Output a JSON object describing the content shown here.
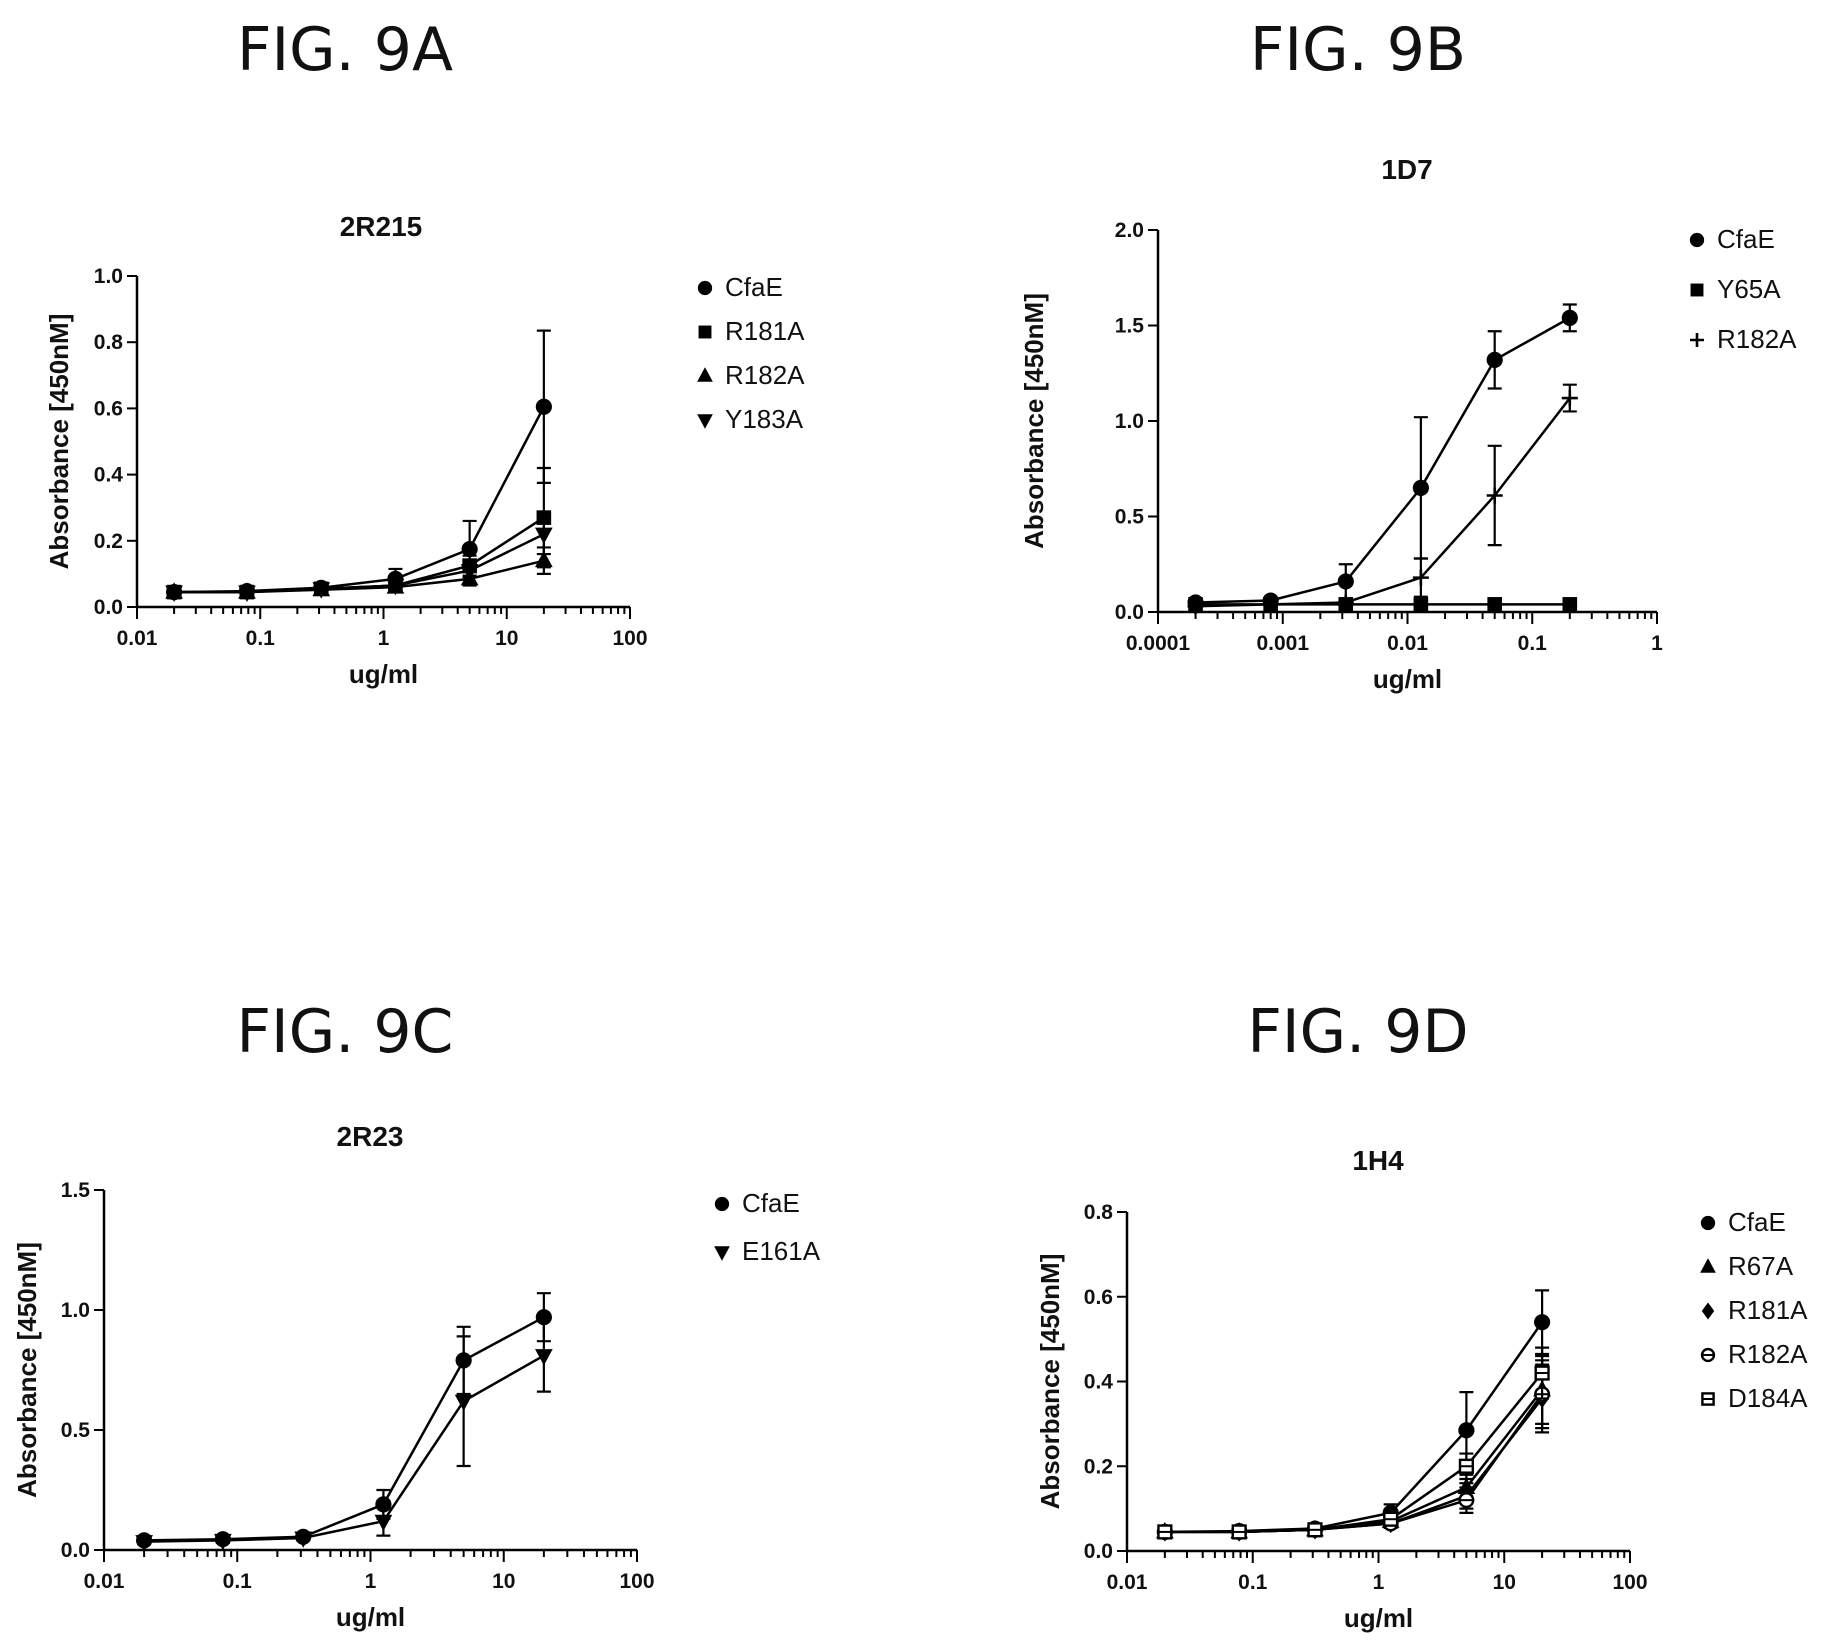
{
  "figures": [
    {
      "fig_label": "FIG. 9A"
    },
    {
      "fig_label": "FIG. 9B"
    },
    {
      "fig_label": "FIG. 9C"
    },
    {
      "fig_label": "FIG. 9D"
    }
  ],
  "chart_data": [
    {
      "type": "line",
      "title": "2R215",
      "xlabel": "ug/ml",
      "ylabel": "Absorbance [450nM]",
      "xscale": "log",
      "xlim": [
        0.01,
        100
      ],
      "ylim": [
        0,
        1.0
      ],
      "xticks": [
        "0.01",
        "0.1",
        "1",
        "10",
        "100"
      ],
      "yticks": [
        "0.0",
        "0.2",
        "0.4",
        "0.6",
        "0.8",
        "1.0"
      ],
      "legend_position": "right",
      "x": [
        0.02,
        0.078,
        0.3125,
        1.25,
        5,
        20
      ],
      "series": [
        {
          "name": "CfaE",
          "marker": "circle",
          "values": [
            0.045,
            0.048,
            0.058,
            0.085,
            0.175,
            0.605
          ],
          "errors": [
            0.005,
            0.005,
            0.008,
            0.03,
            0.085,
            0.23
          ]
        },
        {
          "name": "R181A",
          "marker": "square",
          "values": [
            0.045,
            0.045,
            0.055,
            0.065,
            0.125,
            0.27
          ],
          "errors": [
            0.005,
            0.005,
            0.005,
            0.01,
            0.03,
            0.15
          ]
        },
        {
          "name": "R182A",
          "marker": "triangle-up",
          "values": [
            0.045,
            0.045,
            0.052,
            0.06,
            0.085,
            0.14
          ],
          "errors": [
            0.005,
            0.005,
            0.005,
            0.008,
            0.02,
            0.04
          ]
        },
        {
          "name": "Y183A",
          "marker": "triangle-down",
          "values": [
            0.045,
            0.045,
            0.055,
            0.065,
            0.11,
            0.22
          ],
          "errors": [
            0.005,
            0.005,
            0.005,
            0.01,
            0.02,
            0.06
          ]
        }
      ]
    },
    {
      "type": "line",
      "title": "1D7",
      "xlabel": "ug/ml",
      "ylabel": "Absorbance [450nM]",
      "xscale": "log",
      "xlim": [
        0.0001,
        1
      ],
      "ylim": [
        0,
        2.0
      ],
      "xticks": [
        "0.0001",
        "0.001",
        "0.01",
        "0.1",
        "1"
      ],
      "yticks": [
        "0.0",
        "0.5",
        "1.0",
        "1.5",
        "2.0"
      ],
      "legend_position": "right",
      "x": [
        0.0002,
        0.0008,
        0.0032,
        0.0128,
        0.05,
        0.2
      ],
      "series": [
        {
          "name": "CfaE",
          "marker": "circle",
          "values": [
            0.05,
            0.06,
            0.16,
            0.65,
            1.32,
            1.54
          ],
          "errors": [
            0.01,
            0.01,
            0.09,
            0.37,
            0.15,
            0.07
          ]
        },
        {
          "name": "Y65A",
          "marker": "square",
          "values": [
            0.04,
            0.04,
            0.04,
            0.04,
            0.04,
            0.04
          ],
          "errors": [
            0.005,
            0.005,
            0.005,
            0.005,
            0.005,
            0.005
          ]
        },
        {
          "name": "R182A",
          "marker": "plus",
          "values": [
            0.03,
            0.04,
            0.05,
            0.18,
            0.61,
            1.12
          ],
          "errors": [
            0.005,
            0.005,
            0.01,
            0.1,
            0.26,
            0.07
          ]
        }
      ]
    },
    {
      "type": "line",
      "title": "2R23",
      "xlabel": "ug/ml",
      "ylabel": "Absorbance [450nM]",
      "xscale": "log",
      "xlim": [
        0.01,
        100
      ],
      "ylim": [
        0,
        1.5
      ],
      "xticks": [
        "0.01",
        "0.1",
        "1",
        "10",
        "100"
      ],
      "yticks": [
        "0.0",
        "0.5",
        "1.0",
        "1.5"
      ],
      "legend_position": "right",
      "x": [
        0.02,
        0.078,
        0.3125,
        1.25,
        5,
        20
      ],
      "series": [
        {
          "name": "CfaE",
          "marker": "circle",
          "values": [
            0.04,
            0.045,
            0.055,
            0.19,
            0.79,
            0.97
          ],
          "errors": [
            0.01,
            0.01,
            0.01,
            0.06,
            0.14,
            0.1
          ]
        },
        {
          "name": "E161A",
          "marker": "triangle-down",
          "values": [
            0.035,
            0.04,
            0.05,
            0.12,
            0.62,
            0.81
          ],
          "errors": [
            0.01,
            0.01,
            0.01,
            0.06,
            0.27,
            0.15
          ]
        }
      ]
    },
    {
      "type": "line",
      "title": "1H4",
      "xlabel": "ug/ml",
      "ylabel": "Absorbance [450nM]",
      "xscale": "log",
      "xlim": [
        0.01,
        100
      ],
      "ylim": [
        0,
        0.8
      ],
      "xticks": [
        "0.01",
        "0.1",
        "1",
        "10",
        "100"
      ],
      "yticks": [
        "0.0",
        "0.2",
        "0.4",
        "0.6",
        "0.8"
      ],
      "legend_position": "right",
      "x": [
        0.02,
        0.078,
        0.3125,
        1.25,
        5,
        20
      ],
      "series": [
        {
          "name": "CfaE",
          "marker": "circle",
          "values": [
            0.045,
            0.047,
            0.053,
            0.09,
            0.285,
            0.54
          ],
          "errors": [
            0.005,
            0.005,
            0.006,
            0.02,
            0.09,
            0.075
          ]
        },
        {
          "name": "R67A",
          "marker": "triangle-up",
          "values": [
            0.045,
            0.045,
            0.05,
            0.07,
            0.15,
            0.38
          ],
          "errors": [
            0.005,
            0.005,
            0.005,
            0.01,
            0.03,
            0.08
          ]
        },
        {
          "name": "R181A",
          "marker": "diamond",
          "values": [
            0.045,
            0.045,
            0.05,
            0.065,
            0.13,
            0.36
          ],
          "errors": [
            0.005,
            0.005,
            0.005,
            0.01,
            0.03,
            0.08
          ]
        },
        {
          "name": "R182A",
          "marker": "circle-open-line",
          "values": [
            0.045,
            0.045,
            0.05,
            0.065,
            0.12,
            0.37
          ],
          "errors": [
            0.005,
            0.005,
            0.005,
            0.01,
            0.03,
            0.08
          ]
        },
        {
          "name": "D184A",
          "marker": "square-open-line",
          "values": [
            0.045,
            0.045,
            0.05,
            0.075,
            0.2,
            0.42
          ],
          "errors": [
            0.005,
            0.005,
            0.005,
            0.01,
            0.03,
            0.06
          ]
        }
      ]
    }
  ]
}
